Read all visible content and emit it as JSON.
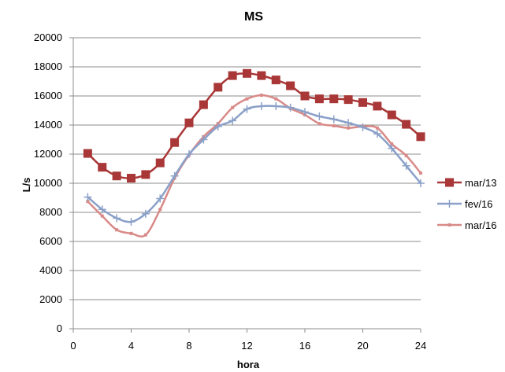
{
  "chart_data": {
    "type": "line",
    "title": "MS",
    "xlabel": "hora",
    "ylabel": "L/s",
    "xlim": [
      0,
      24
    ],
    "ylim": [
      0,
      20000
    ],
    "xticks": [
      "0",
      "4",
      "8",
      "12",
      "16",
      "20",
      "24"
    ],
    "yticks": [
      "0",
      "2000",
      "4000",
      "6000",
      "8000",
      "10000",
      "12000",
      "14000",
      "16000",
      "18000",
      "20000"
    ],
    "grid": "horizontal",
    "legend_position": "right",
    "x": [
      1,
      2,
      3,
      4,
      5,
      6,
      7,
      8,
      9,
      10,
      11,
      12,
      13,
      14,
      15,
      16,
      17,
      18,
      19,
      20,
      21,
      22,
      23,
      24
    ],
    "series": [
      {
        "name": "mar/13",
        "color": "#a93737",
        "marker": "square",
        "values": [
          12050,
          11100,
          10500,
          10350,
          10600,
          11400,
          12800,
          14150,
          15400,
          16600,
          17400,
          17550,
          17400,
          17100,
          16700,
          16000,
          15800,
          15800,
          15750,
          15550,
          15300,
          14700,
          14050,
          13200
        ]
      },
      {
        "name": "fev/16",
        "color": "#8aa0c8",
        "marker": "plus",
        "values": [
          9050,
          8200,
          7600,
          7350,
          7900,
          8950,
          10500,
          12000,
          13000,
          13900,
          14300,
          15100,
          15300,
          15300,
          15200,
          14900,
          14600,
          14400,
          14150,
          13850,
          13400,
          12400,
          11200,
          10000
        ]
      },
      {
        "name": "mar/16",
        "color": "#d88a88",
        "marker": "dot",
        "values": [
          8750,
          7750,
          6800,
          6550,
          6450,
          8200,
          10350,
          11950,
          13200,
          14100,
          15200,
          15800,
          16050,
          15800,
          15150,
          14700,
          14100,
          13950,
          13800,
          13900,
          13800,
          12700,
          11900,
          10700
        ]
      }
    ]
  }
}
